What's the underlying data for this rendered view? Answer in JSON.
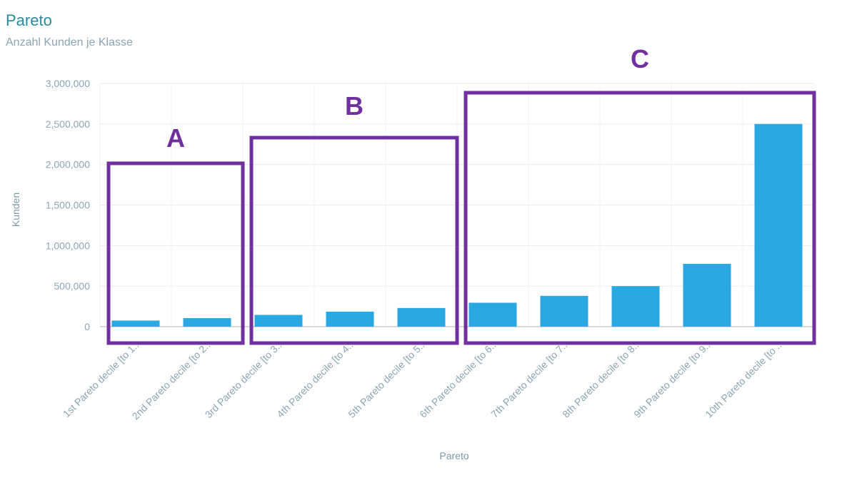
{
  "chart_data": {
    "type": "bar",
    "title": "Pareto",
    "subtitle": "Anzahl Kunden je Klasse",
    "xlabel": "Pareto",
    "ylabel": "Kunden",
    "ylim": [
      0,
      3000000
    ],
    "yticks": [
      "0",
      "500,000",
      "1,000,000",
      "1,500,000",
      "2,000,000",
      "2,500,000",
      "3,000,000"
    ],
    "ytick_values": [
      0,
      500000,
      1000000,
      1500000,
      2000000,
      2500000,
      3000000
    ],
    "categories": [
      "1st Pareto decile [to 1...",
      "2nd Pareto decile [to 2...",
      "3rd Pareto decile [to 3...",
      "4th Pareto decile [to 4...",
      "5th Pareto decile [to 5...",
      "6th Pareto decile [to 6...",
      "7th Pareto decile [to 7...",
      "8th Pareto decile [to 8...",
      "9th Pareto decile [to 9...",
      "10th Pareto decile [to ..."
    ],
    "values": [
      75000,
      105000,
      145000,
      185000,
      230000,
      295000,
      380000,
      500000,
      775000,
      2500000
    ],
    "bar_color": "#29a9e1",
    "grid": true,
    "groups": [
      {
        "label": "A",
        "categories": [
          0,
          1
        ]
      },
      {
        "label": "B",
        "categories": [
          2,
          3,
          4
        ]
      },
      {
        "label": "C",
        "categories": [
          5,
          6,
          7,
          8,
          9
        ]
      }
    ],
    "group_color": "#7030a0"
  }
}
